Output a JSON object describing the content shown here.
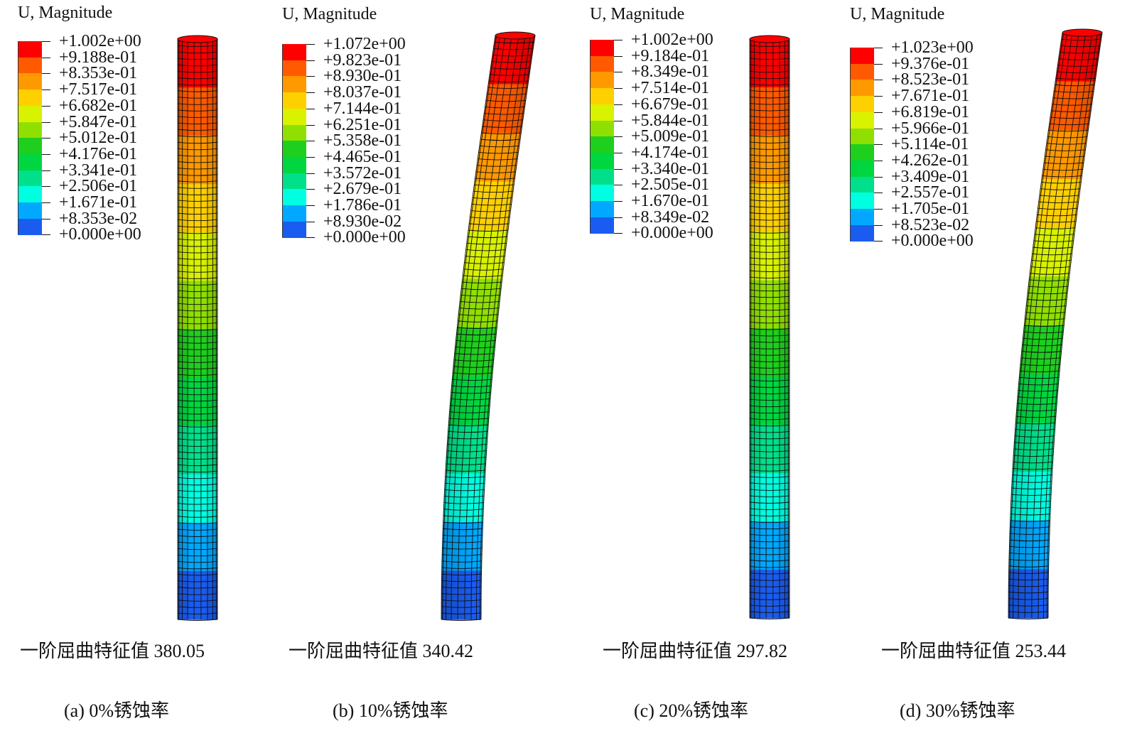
{
  "colors": [
    "#0000ff",
    "#1a5cf0",
    "#00a8ff",
    "#00ffe0",
    "#00e08a",
    "#00d640",
    "#1ecf1e",
    "#8fe000",
    "#d8f200",
    "#ffd000",
    "#ff9900",
    "#ff5a00",
    "#ff0000"
  ],
  "panels": [
    {
      "legend_title": "U, Magnitude",
      "labels": [
        "+1.002e+00",
        "+9.188e-01",
        "+8.353e-01",
        "+7.517e-01",
        "+6.682e-01",
        "+5.847e-01",
        "+5.012e-01",
        "+4.176e-01",
        "+3.341e-01",
        "+2.506e-01",
        "+1.671e-01",
        "+8.353e-02",
        "+0.000e+00"
      ],
      "eigen_label": "一阶屈曲特征值 380.05",
      "caption": "(a) 0%锈蚀率",
      "max_deflection": 0
    },
    {
      "legend_title": "U, Magnitude",
      "labels": [
        "+1.072e+00",
        "+9.823e-01",
        "+8.930e-01",
        "+8.037e-01",
        "+7.144e-01",
        "+6.251e-01",
        "+5.358e-01",
        "+4.465e-01",
        "+3.572e-01",
        "+2.679e-01",
        "+1.786e-01",
        "+8.930e-02",
        "+0.000e+00"
      ],
      "eigen_label": "一阶屈曲特征值 340.42",
      "caption": "(b) 10%锈蚀率",
      "max_deflection": 1
    },
    {
      "legend_title": "U, Magnitude",
      "labels": [
        "+1.002e+00",
        "+9.184e-01",
        "+8.349e-01",
        "+7.514e-01",
        "+6.679e-01",
        "+5.844e-01",
        "+5.009e-01",
        "+4.174e-01",
        "+3.340e-01",
        "+2.505e-01",
        "+1.670e-01",
        "+8.349e-02",
        "+0.000e+00"
      ],
      "eigen_label": "一阶屈曲特征值 297.82",
      "caption": "(c) 20%锈蚀率",
      "max_deflection": 0
    },
    {
      "legend_title": "U, Magnitude",
      "labels": [
        "+1.023e+00",
        "+9.376e-01",
        "+8.523e-01",
        "+7.671e-01",
        "+6.819e-01",
        "+5.966e-01",
        "+5.114e-01",
        "+4.262e-01",
        "+3.409e-01",
        "+2.557e-01",
        "+1.705e-01",
        "+8.523e-02",
        "+0.000e+00"
      ],
      "eigen_label": "一阶屈曲特征值 253.44",
      "caption": "(d) 30%锈蚀率",
      "max_deflection": 1
    }
  ]
}
